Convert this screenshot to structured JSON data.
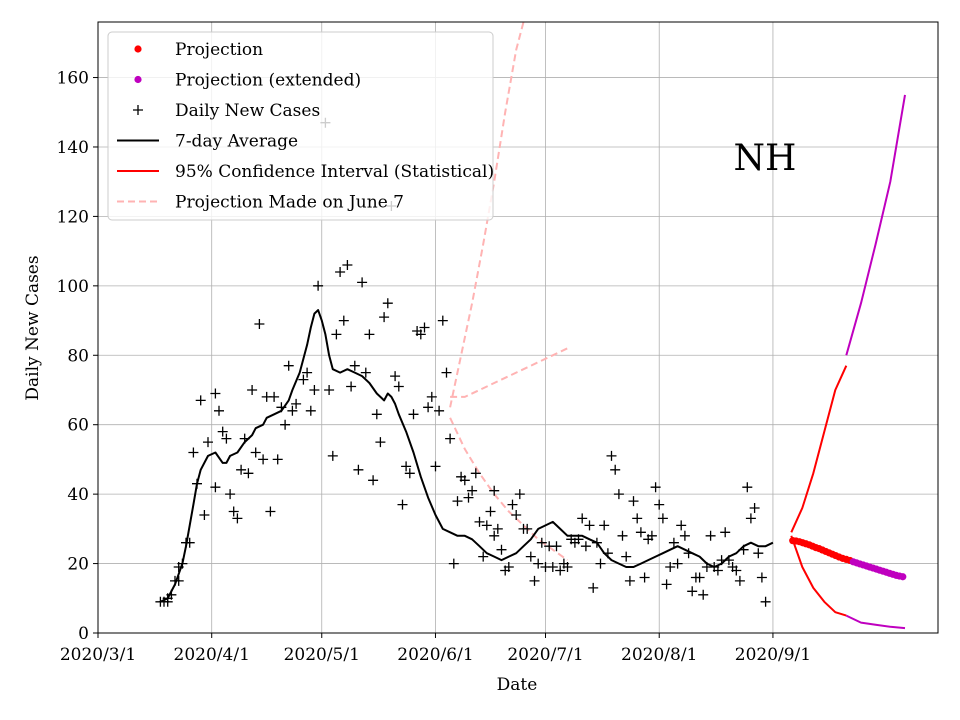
{
  "chart_data": {
    "type": "line",
    "region_label": "NH",
    "xlabel": "Date",
    "ylabel": "Daily New Cases",
    "ylim": [
      0,
      176
    ],
    "xlim_days": [
      0,
      229
    ],
    "x_ticks": [
      {
        "day": 0,
        "label": "2020/3/1"
      },
      {
        "day": 31,
        "label": "2020/4/1"
      },
      {
        "day": 61,
        "label": "2020/5/1"
      },
      {
        "day": 92,
        "label": "2020/6/1"
      },
      {
        "day": 122,
        "label": "2020/7/1"
      },
      {
        "day": 153,
        "label": "2020/8/1"
      },
      {
        "day": 184,
        "label": "2020/9/1"
      }
    ],
    "y_ticks": [
      0,
      20,
      40,
      60,
      80,
      100,
      120,
      140,
      160
    ],
    "legend": {
      "position": "upper-left",
      "entries": [
        {
          "label": "Projection",
          "kind": "dot",
          "color": "#ff0000"
        },
        {
          "label": "Projection (extended)",
          "kind": "dot",
          "color": "#bf00bf"
        },
        {
          "label": "Daily New Cases",
          "kind": "plus",
          "color": "#000000"
        },
        {
          "label": "7-day Average",
          "kind": "line",
          "color": "#000000"
        },
        {
          "label": "95% Confidence Interval (Statistical)",
          "kind": "line",
          "color": "#ff0000"
        },
        {
          "label": "Projection Made on June 7",
          "kind": "dash",
          "color": "#ffb3b3"
        }
      ]
    },
    "daily_new_cases": [
      [
        17,
        9
      ],
      [
        18,
        9
      ],
      [
        19,
        10
      ],
      [
        19,
        9
      ],
      [
        20,
        11
      ],
      [
        21,
        15
      ],
      [
        22,
        15
      ],
      [
        22,
        19
      ],
      [
        23,
        20
      ],
      [
        24,
        26
      ],
      [
        25,
        26
      ],
      [
        26,
        52
      ],
      [
        27,
        43
      ],
      [
        28,
        67
      ],
      [
        29,
        34
      ],
      [
        30,
        55
      ],
      [
        32,
        42
      ],
      [
        32,
        69
      ],
      [
        33,
        64
      ],
      [
        34,
        58
      ],
      [
        35,
        56
      ],
      [
        36,
        40
      ],
      [
        37,
        35
      ],
      [
        38,
        33
      ],
      [
        39,
        47
      ],
      [
        40,
        56
      ],
      [
        41,
        46
      ],
      [
        42,
        70
      ],
      [
        43,
        52
      ],
      [
        44,
        89
      ],
      [
        45,
        50
      ],
      [
        46,
        68
      ],
      [
        47,
        35
      ],
      [
        48,
        68
      ],
      [
        49,
        50
      ],
      [
        50,
        65
      ],
      [
        51,
        60
      ],
      [
        52,
        77
      ],
      [
        53,
        64
      ],
      [
        54,
        66
      ],
      [
        56,
        73
      ],
      [
        57,
        75
      ],
      [
        58,
        64
      ],
      [
        59,
        70
      ],
      [
        60,
        100
      ],
      [
        62,
        147
      ],
      [
        63,
        70
      ],
      [
        64,
        51
      ],
      [
        65,
        86
      ],
      [
        66,
        104
      ],
      [
        67,
        90
      ],
      [
        68,
        106
      ],
      [
        69,
        71
      ],
      [
        70,
        77
      ],
      [
        71,
        47
      ],
      [
        72,
        101
      ],
      [
        73,
        75
      ],
      [
        74,
        86
      ],
      [
        75,
        44
      ],
      [
        76,
        63
      ],
      [
        77,
        55
      ],
      [
        78,
        91
      ],
      [
        79,
        95
      ],
      [
        80,
        123
      ],
      [
        81,
        74
      ],
      [
        82,
        71
      ],
      [
        83,
        37
      ],
      [
        84,
        48
      ],
      [
        85,
        46
      ],
      [
        86,
        63
      ],
      [
        87,
        87
      ],
      [
        88,
        86
      ],
      [
        89,
        88
      ],
      [
        90,
        65
      ],
      [
        91,
        68
      ],
      [
        92,
        48
      ],
      [
        93,
        64
      ],
      [
        94,
        90
      ],
      [
        95,
        75
      ],
      [
        96,
        56
      ],
      [
        97,
        20
      ],
      [
        98,
        38
      ],
      [
        99,
        45
      ],
      [
        100,
        44
      ],
      [
        101,
        39
      ],
      [
        102,
        41
      ],
      [
        103,
        46
      ],
      [
        104,
        32
      ],
      [
        105,
        22
      ],
      [
        106,
        31
      ],
      [
        107,
        35
      ],
      [
        108,
        41
      ],
      [
        108,
        28
      ],
      [
        109,
        30
      ],
      [
        110,
        24
      ],
      [
        111,
        18
      ],
      [
        112,
        19
      ],
      [
        113,
        37
      ],
      [
        114,
        34
      ],
      [
        115,
        40
      ],
      [
        116,
        30
      ],
      [
        117,
        30
      ],
      [
        118,
        22
      ],
      [
        119,
        15
      ],
      [
        120,
        20
      ],
      [
        121,
        26
      ],
      [
        122,
        19
      ],
      [
        123,
        25
      ],
      [
        124,
        19
      ],
      [
        125,
        25
      ],
      [
        126,
        18
      ],
      [
        127,
        20
      ],
      [
        128,
        19
      ],
      [
        129,
        27
      ],
      [
        130,
        26
      ],
      [
        131,
        27
      ],
      [
        132,
        33
      ],
      [
        133,
        25
      ],
      [
        134,
        31
      ],
      [
        135,
        13
      ],
      [
        136,
        26
      ],
      [
        137,
        20
      ],
      [
        138,
        31
      ],
      [
        139,
        23
      ],
      [
        140,
        51
      ],
      [
        141,
        47
      ],
      [
        142,
        40
      ],
      [
        143,
        28
      ],
      [
        144,
        22
      ],
      [
        145,
        15
      ],
      [
        146,
        38
      ],
      [
        147,
        33
      ],
      [
        148,
        29
      ],
      [
        149,
        16
      ],
      [
        150,
        27
      ],
      [
        151,
        28
      ],
      [
        152,
        42
      ],
      [
        153,
        37
      ],
      [
        154,
        33
      ],
      [
        155,
        14
      ],
      [
        156,
        19
      ],
      [
        157,
        26
      ],
      [
        158,
        20
      ],
      [
        159,
        31
      ],
      [
        160,
        28
      ],
      [
        161,
        23
      ],
      [
        162,
        12
      ],
      [
        163,
        16
      ],
      [
        164,
        16
      ],
      [
        165,
        11
      ],
      [
        166,
        19
      ],
      [
        167,
        28
      ],
      [
        168,
        19
      ],
      [
        169,
        18
      ],
      [
        170,
        21
      ],
      [
        171,
        29
      ],
      [
        172,
        21
      ],
      [
        173,
        19
      ],
      [
        174,
        18
      ],
      [
        175,
        15
      ],
      [
        176,
        24
      ],
      [
        177,
        42
      ],
      [
        178,
        33
      ],
      [
        179,
        36
      ],
      [
        180,
        23
      ],
      [
        181,
        16
      ],
      [
        182,
        9
      ]
    ],
    "seven_day_average": [
      [
        17,
        9
      ],
      [
        19,
        10
      ],
      [
        21,
        14
      ],
      [
        23,
        20
      ],
      [
        24,
        25
      ],
      [
        25,
        31
      ],
      [
        26,
        37
      ],
      [
        27,
        43
      ],
      [
        28,
        47
      ],
      [
        30,
        51
      ],
      [
        32,
        52
      ],
      [
        34,
        49
      ],
      [
        35,
        49
      ],
      [
        36,
        51
      ],
      [
        38,
        52
      ],
      [
        40,
        55
      ],
      [
        42,
        57
      ],
      [
        43,
        59
      ],
      [
        45,
        60
      ],
      [
        46,
        62
      ],
      [
        48,
        63
      ],
      [
        50,
        64
      ],
      [
        52,
        67
      ],
      [
        53,
        70
      ],
      [
        55,
        75
      ],
      [
        56,
        79
      ],
      [
        57,
        83
      ],
      [
        58,
        88
      ],
      [
        59,
        92
      ],
      [
        60,
        93
      ],
      [
        61,
        90
      ],
      [
        62,
        86
      ],
      [
        63,
        80
      ],
      [
        64,
        76
      ],
      [
        66,
        75
      ],
      [
        68,
        76
      ],
      [
        70,
        75
      ],
      [
        72,
        74
      ],
      [
        74,
        72
      ],
      [
        76,
        69
      ],
      [
        77,
        68
      ],
      [
        78,
        67
      ],
      [
        79,
        69
      ],
      [
        80,
        68
      ],
      [
        81,
        66
      ],
      [
        82,
        63
      ],
      [
        84,
        58
      ],
      [
        86,
        52
      ],
      [
        88,
        45
      ],
      [
        90,
        39
      ],
      [
        92,
        34
      ],
      [
        94,
        30
      ],
      [
        96,
        29
      ],
      [
        98,
        28
      ],
      [
        100,
        28
      ],
      [
        102,
        27
      ],
      [
        104,
        25
      ],
      [
        106,
        23
      ],
      [
        108,
        22
      ],
      [
        110,
        21
      ],
      [
        112,
        22
      ],
      [
        114,
        23
      ],
      [
        116,
        25
      ],
      [
        118,
        27
      ],
      [
        120,
        30
      ],
      [
        122,
        31
      ],
      [
        124,
        32
      ],
      [
        126,
        30
      ],
      [
        128,
        28
      ],
      [
        130,
        28
      ],
      [
        132,
        28
      ],
      [
        134,
        27
      ],
      [
        136,
        26
      ],
      [
        138,
        23
      ],
      [
        140,
        21
      ],
      [
        142,
        20
      ],
      [
        144,
        19
      ],
      [
        146,
        19
      ],
      [
        148,
        20
      ],
      [
        150,
        21
      ],
      [
        152,
        22
      ],
      [
        154,
        23
      ],
      [
        156,
        24
      ],
      [
        158,
        25
      ],
      [
        160,
        24
      ],
      [
        162,
        23
      ],
      [
        164,
        22
      ],
      [
        166,
        20
      ],
      [
        168,
        19
      ],
      [
        170,
        20
      ],
      [
        172,
        22
      ],
      [
        174,
        23
      ],
      [
        176,
        25
      ],
      [
        178,
        26
      ],
      [
        180,
        25
      ],
      [
        182,
        25
      ],
      [
        184,
        26
      ]
    ],
    "projection": [
      [
        189.4,
        26.6
      ],
      [
        190.3,
        26.5
      ],
      [
        191.2,
        26.3
      ],
      [
        192.1,
        26.0
      ],
      [
        193.0,
        25.7
      ],
      [
        193.9,
        25.4
      ],
      [
        194.8,
        25.0
      ],
      [
        195.7,
        24.6
      ],
      [
        196.6,
        24.3
      ],
      [
        197.5,
        23.9
      ],
      [
        198.4,
        23.5
      ],
      [
        199.3,
        23.1
      ],
      [
        200.2,
        22.7
      ],
      [
        201.1,
        22.3
      ],
      [
        202.0,
        21.9
      ],
      [
        203.0,
        21.5
      ],
      [
        204.0,
        21.2
      ],
      [
        205.0,
        20.9
      ]
    ],
    "projection_extended": [
      [
        205.9,
        20.5
      ],
      [
        206.8,
        20.2
      ],
      [
        207.7,
        19.9
      ],
      [
        208.6,
        19.6
      ],
      [
        209.5,
        19.3
      ],
      [
        210.4,
        19.0
      ],
      [
        211.3,
        18.7
      ],
      [
        212.2,
        18.4
      ],
      [
        213.1,
        18.1
      ],
      [
        214.0,
        17.8
      ],
      [
        214.9,
        17.5
      ],
      [
        215.8,
        17.2
      ],
      [
        216.7,
        16.9
      ],
      [
        217.6,
        16.6
      ],
      [
        218.5,
        16.4
      ],
      [
        219.4,
        16.2
      ]
    ],
    "ci_upper": [
      [
        189,
        29
      ],
      [
        192,
        36
      ],
      [
        195,
        46
      ],
      [
        198,
        58
      ],
      [
        201,
        70
      ],
      [
        204,
        77
      ]
    ],
    "ci_lower": [
      [
        189,
        28
      ],
      [
        192,
        19
      ],
      [
        195,
        13
      ],
      [
        198,
        9
      ],
      [
        201,
        6
      ],
      [
        204,
        5
      ]
    ],
    "ci_upper_extended": [
      [
        204,
        80
      ],
      [
        208,
        95
      ],
      [
        212,
        112
      ],
      [
        216,
        130
      ],
      [
        220,
        155
      ]
    ],
    "ci_lower_extended": [
      [
        204,
        5
      ],
      [
        208,
        3
      ],
      [
        212,
        2.4
      ],
      [
        216,
        1.8
      ],
      [
        220,
        1.4
      ]
    ],
    "june7_projection": {
      "upper": [
        [
          96,
          65
        ],
        [
          99,
          80
        ],
        [
          102,
          95
        ],
        [
          105,
          112
        ],
        [
          108,
          130
        ],
        [
          111,
          150
        ],
        [
          114,
          168
        ],
        [
          116,
          176
        ]
      ],
      "middle": [
        [
          96,
          68
        ],
        [
          100,
          68
        ],
        [
          104,
          70
        ],
        [
          108,
          72
        ],
        [
          112,
          74
        ],
        [
          116,
          76
        ],
        [
          120,
          78
        ],
        [
          124,
          80
        ],
        [
          128,
          82
        ]
      ],
      "lower": [
        [
          96,
          62
        ],
        [
          100,
          53
        ],
        [
          104,
          46
        ],
        [
          108,
          40
        ],
        [
          112,
          35
        ],
        [
          116,
          31
        ],
        [
          120,
          27
        ],
        [
          124,
          24
        ],
        [
          128,
          21
        ]
      ]
    }
  }
}
